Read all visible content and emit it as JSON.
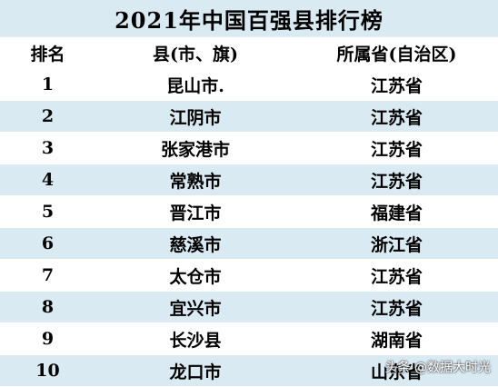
{
  "title": "2021年中国百强县排行榜",
  "headers": {
    "rank": "排名",
    "county": "县(市、旗)",
    "province": "所属省(自治区)"
  },
  "rows": [
    {
      "rank": "1",
      "county": "昆山市.",
      "province": "江苏省"
    },
    {
      "rank": "2",
      "county": "江阴市",
      "province": "江苏省"
    },
    {
      "rank": "3",
      "county": "张家港市",
      "province": "江苏省"
    },
    {
      "rank": "4",
      "county": "常熟市",
      "province": "江苏省"
    },
    {
      "rank": "5",
      "county": "晋江市",
      "province": "福建省"
    },
    {
      "rank": "6",
      "county": "慈溪市",
      "province": "浙江省"
    },
    {
      "rank": "7",
      "county": "太仓市",
      "province": "江苏省"
    },
    {
      "rank": "8",
      "county": "宜兴市",
      "province": "江苏省"
    },
    {
      "rank": "9",
      "county": "长沙县",
      "province": "湖南省"
    },
    {
      "rank": "10",
      "county": "龙口市",
      "province": "山东省"
    }
  ],
  "watermark": "头条 @数据大时光",
  "colors": {
    "band": "#d9eaf3",
    "background": "#ffffff"
  }
}
